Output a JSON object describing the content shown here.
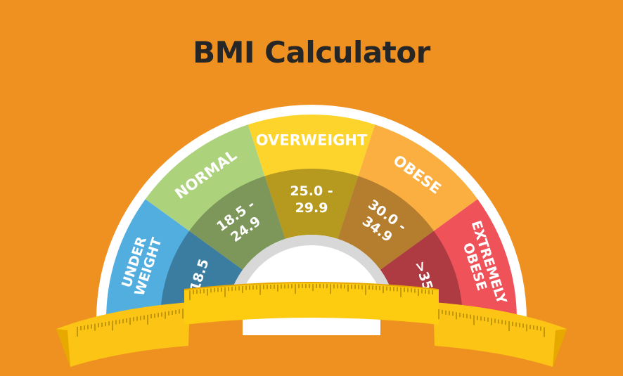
{
  "title": "BMI Calculator",
  "colors": {
    "background": "#EE9121",
    "ring": "#FFFFFF",
    "underweight": "#53AEE0",
    "normal": "#ACD27C",
    "overweight": "#FDD42C",
    "obese": "#FBAF40",
    "extremely_obese": "#F0525A",
    "ruler": "#FCC414",
    "ruler_dark": "#E7A800"
  },
  "segments": [
    {
      "label_lines": [
        "UNDER",
        "WEIGHT"
      ],
      "range_lines": [
        "< 18.5"
      ],
      "color": "#53AEE0"
    },
    {
      "label_lines": [
        "NORMAL"
      ],
      "range_lines": [
        "18.5 -",
        "24.9"
      ],
      "color": "#ACD27C"
    },
    {
      "label_lines": [
        "OVERWEIGHT"
      ],
      "range_lines": [
        "25.0 -",
        "29.9"
      ],
      "color": "#FDD42C"
    },
    {
      "label_lines": [
        "OBESE"
      ],
      "range_lines": [
        "30.0 -",
        "34.9"
      ],
      "color": "#FBAF40"
    },
    {
      "label_lines": [
        "EXTREMELY",
        "OBESE"
      ],
      "range_lines": [
        ">35.0"
      ],
      "color": "#F0525A"
    }
  ]
}
